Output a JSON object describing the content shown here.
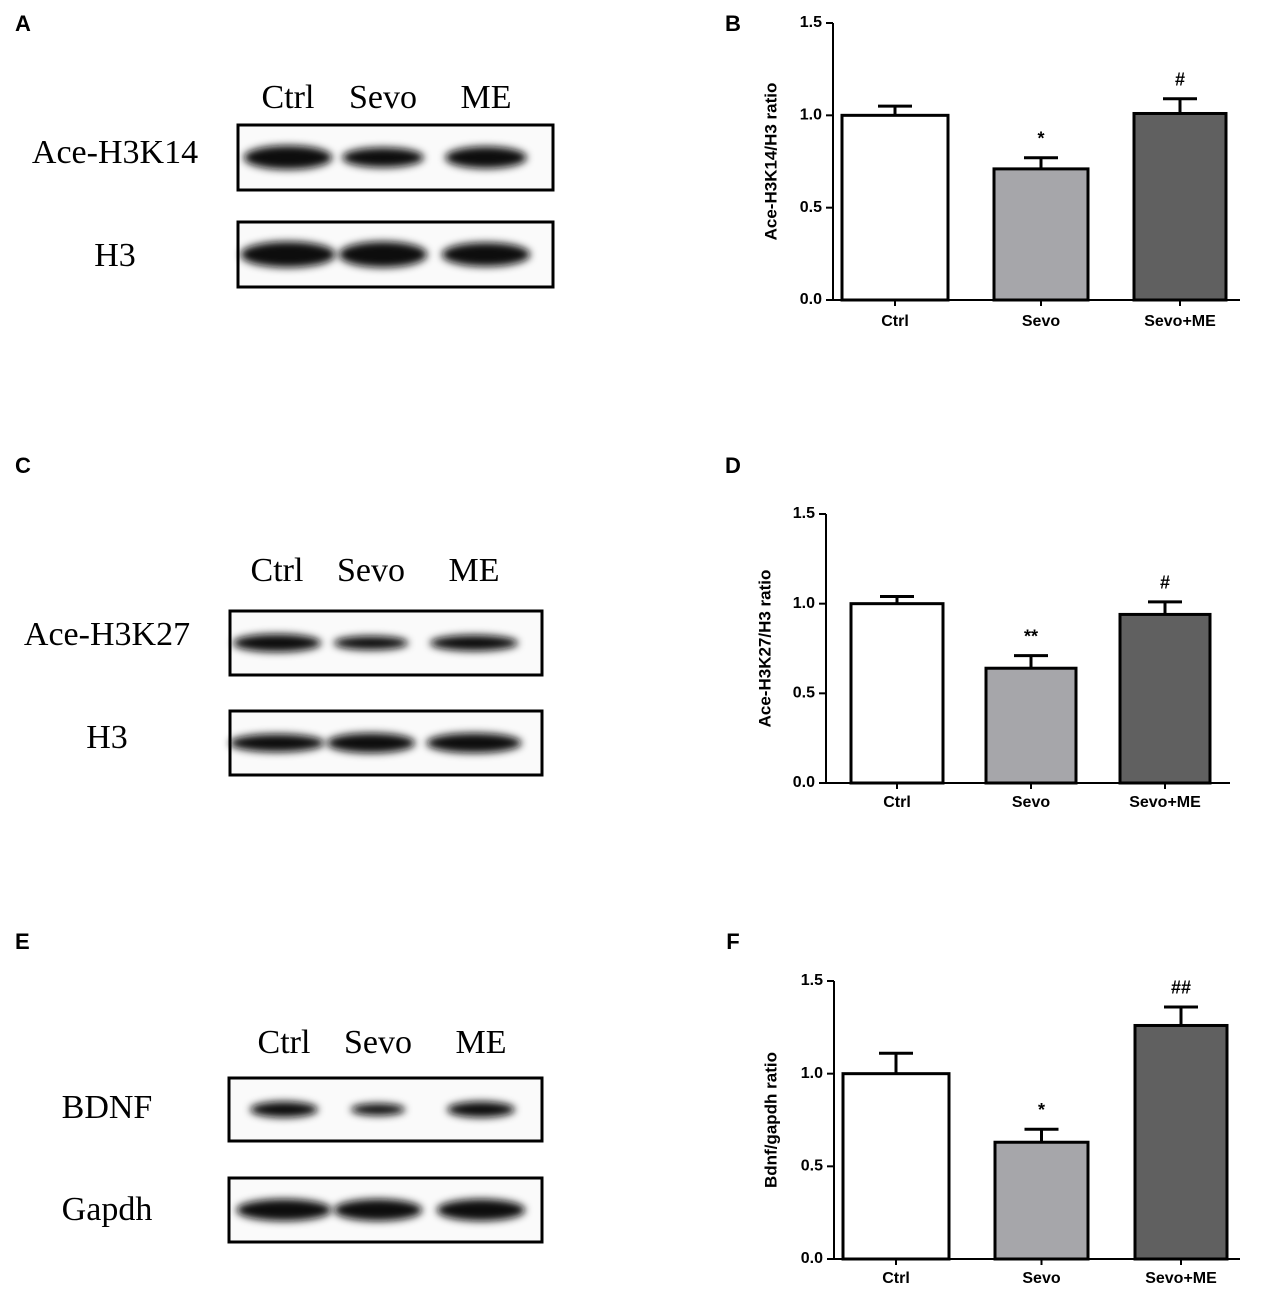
{
  "blots": [
    {
      "letter": "A",
      "lanes": [
        "Ctrl",
        "Sevo",
        "ME"
      ],
      "rows": [
        "Ace-H3K14",
        "H3"
      ]
    },
    {
      "letter": "C",
      "lanes": [
        "Ctrl",
        "Sevo",
        "ME"
      ],
      "rows": [
        "Ace-H3K27",
        "H3"
      ]
    },
    {
      "letter": "E",
      "lanes": [
        "Ctrl",
        "Sevo",
        "ME"
      ],
      "rows": [
        "BDNF",
        "Gapdh"
      ]
    }
  ],
  "chart_data": [
    {
      "type": "bar",
      "letter": "B",
      "ylabel": "Ace-H3K14/H3 ratio",
      "categories": [
        "Ctrl",
        "Sevo",
        "Sevo+ME"
      ],
      "values": [
        1.0,
        0.71,
        1.01
      ],
      "errors": [
        0.05,
        0.06,
        0.08
      ],
      "annotations": [
        null,
        "*",
        "#"
      ],
      "colors": [
        "#ffffff",
        "#a6a6aa",
        "#606060"
      ],
      "ylim": [
        0,
        1.5
      ],
      "yticks": [
        {
          "value": 0,
          "label": "0.0"
        },
        {
          "value": 0.5,
          "label": "0.5"
        },
        {
          "value": 1,
          "label": "1.0"
        },
        {
          "value": 1.5,
          "label": "1.5"
        }
      ]
    },
    {
      "type": "bar",
      "letter": "D",
      "ylabel": "Ace-H3K27/H3 ratio",
      "categories": [
        "Ctrl",
        "Sevo",
        "Sevo+ME"
      ],
      "values": [
        1.0,
        0.64,
        0.94
      ],
      "errors": [
        0.04,
        0.07,
        0.07
      ],
      "annotations": [
        null,
        "**",
        "#"
      ],
      "colors": [
        "#ffffff",
        "#a6a6aa",
        "#606060"
      ],
      "ylim": [
        0,
        1.5
      ],
      "yticks": [
        {
          "value": 0,
          "label": "0.0"
        },
        {
          "value": 0.5,
          "label": "0.5"
        },
        {
          "value": 1,
          "label": "1.0"
        },
        {
          "value": 1.5,
          "label": "1.5"
        }
      ]
    },
    {
      "type": "bar",
      "letter": "F",
      "ylabel": "Bdnf/gapdh ratio",
      "categories": [
        "Ctrl",
        "Sevo",
        "Sevo+ME"
      ],
      "values": [
        1.0,
        0.63,
        1.26
      ],
      "errors": [
        0.11,
        0.07,
        0.1
      ],
      "annotations": [
        null,
        "*",
        "##"
      ],
      "colors": [
        "#ffffff",
        "#a6a6aa",
        "#606060"
      ],
      "ylim": [
        0,
        1.5
      ],
      "yticks": [
        {
          "value": 0,
          "label": "0.0"
        },
        {
          "value": 0.5,
          "label": "0.5"
        },
        {
          "value": 1,
          "label": "1.0"
        },
        {
          "value": 1.5,
          "label": "1.5"
        }
      ]
    }
  ]
}
